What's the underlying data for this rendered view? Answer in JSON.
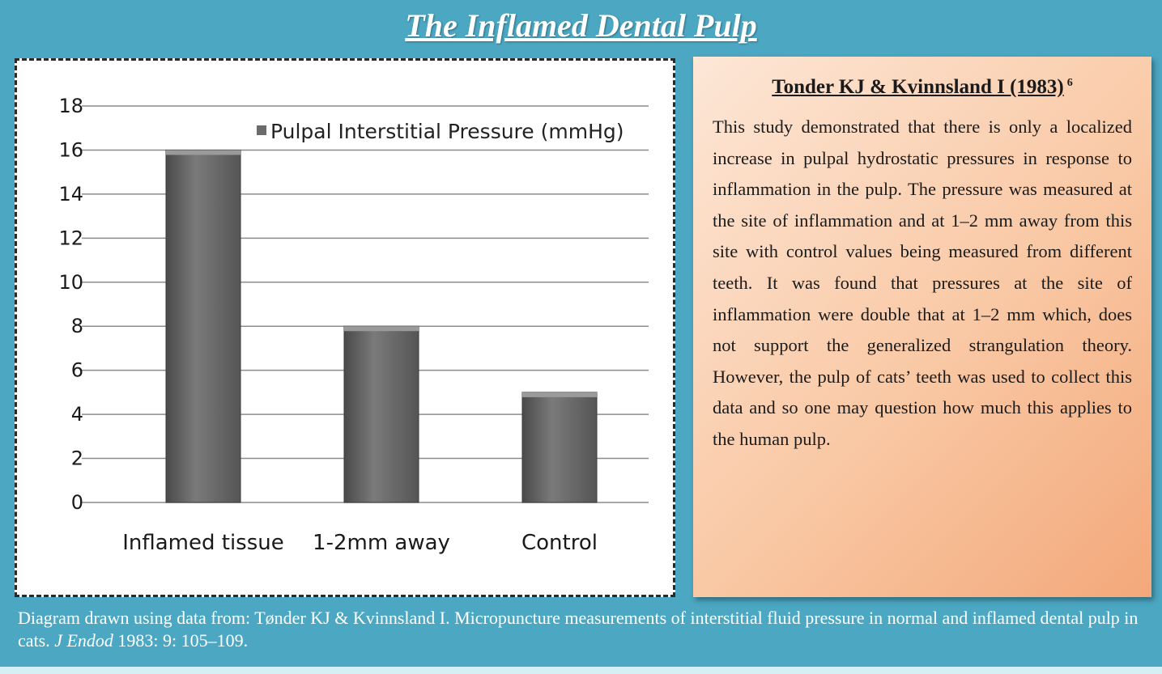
{
  "page": {
    "title": "The Inflamed Dental Pulp",
    "background_color": "#4ba7c2"
  },
  "chart_data": {
    "type": "bar",
    "categories": [
      "Inflamed tissue",
      "1-2mm away",
      "Control"
    ],
    "series": [
      {
        "name": "Pulpal Interstitial Pressure (mmHg)",
        "values": [
          16,
          8,
          5
        ]
      }
    ],
    "ylim": [
      0,
      18
    ],
    "yticks": [
      "0",
      "2",
      "4",
      "6",
      "8",
      "10",
      "12",
      "14",
      "16",
      "18"
    ],
    "grid": true,
    "legend": "top-right",
    "bar_color": "#6b6b6b"
  },
  "study": {
    "heading": "Tonder KJ & Kvinnsland I (1983)",
    "superscript": "6",
    "body": "This study demonstrated that there is only a localized increase in pulpal hydrostatic pressures in response to inflammation in the pulp. The pressure was measured at the site of inflammation and at 1–2 mm away from this site with control values being measured from different teeth. It was found that pressures at the site of inflammation were double that at 1–2 mm which, does not support the generalized strangulation theory. However, the pulp of cats’ teeth was used to collect this data and so one may question how much this applies to the human pulp."
  },
  "caption": {
    "lead": "Diagram drawn using data  from: Tønder KJ & Kvinnsland I. Micropuncture measurements of interstitial fluid pressure in normal and inflamed dental pulp in cats.",
    "journal": "J Endod",
    "tail": "1983: 9: 105–109."
  }
}
